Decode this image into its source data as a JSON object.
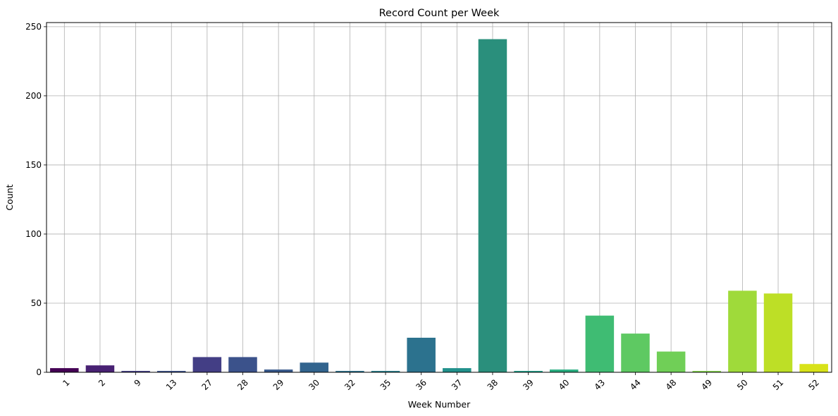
{
  "chart_data": {
    "type": "bar",
    "title": "Record Count per Week",
    "xlabel": "Week Number",
    "ylabel": "Count",
    "categories": [
      "1",
      "2",
      "9",
      "13",
      "27",
      "28",
      "29",
      "30",
      "32",
      "35",
      "36",
      "37",
      "38",
      "39",
      "40",
      "43",
      "44",
      "48",
      "49",
      "50",
      "51",
      "52"
    ],
    "values": [
      3,
      5,
      1,
      1,
      11,
      11,
      2,
      7,
      1,
      1,
      25,
      3,
      241,
      1,
      2,
      41,
      28,
      15,
      1,
      59,
      57,
      6
    ],
    "colors": [
      "#440154",
      "#482173",
      "#433e85",
      "#3b528b",
      "#433e85",
      "#3b528b",
      "#38598c",
      "#32648e",
      "#2c728e",
      "#27808e",
      "#2c728e",
      "#21918c",
      "#2a8f7c",
      "#1f9e89",
      "#28ae80",
      "#3fbc73",
      "#5ec962",
      "#70cf57",
      "#84d44b",
      "#9fda3a",
      "#bddf26",
      "#d8e219"
    ],
    "yticks": [
      0,
      50,
      100,
      150,
      200,
      250
    ],
    "ylim": [
      0,
      253
    ],
    "grid": true,
    "xtick_rotation": -45
  }
}
